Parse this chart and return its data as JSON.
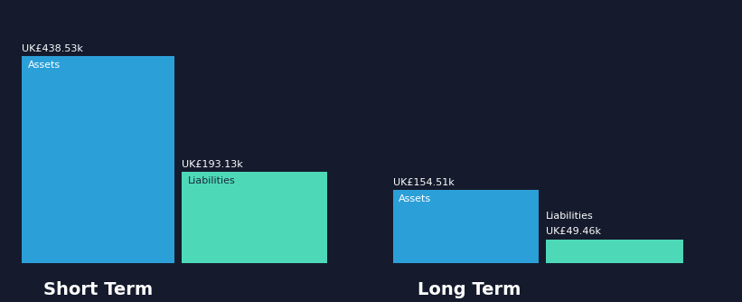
{
  "background_color": "#151b2d",
  "bar_color_assets": "#2b9fd8",
  "bar_color_liabilities": "#4dd9b8",
  "text_color": "#ffffff",
  "label_color_liabilities_inside": "#1a2a3a",
  "short_term": {
    "assets_value": 438.53,
    "liabilities_value": 193.13,
    "assets_label": "UK£438.53k",
    "liabilities_label": "UK£193.13k",
    "assets_bar_label": "Assets",
    "liabilities_bar_label": "Liabilities"
  },
  "long_term": {
    "assets_value": 154.51,
    "liabilities_value": 49.46,
    "assets_label": "UK£154.51k",
    "liabilities_label": "UK£49.46k",
    "assets_bar_label": "Assets",
    "liabilities_bar_label": "Liabilities"
  },
  "xlabel_short": "Short Term",
  "xlabel_long": "Long Term",
  "group_label_fontsize": 14,
  "value_label_fontsize": 8,
  "bar_label_fontsize": 8
}
